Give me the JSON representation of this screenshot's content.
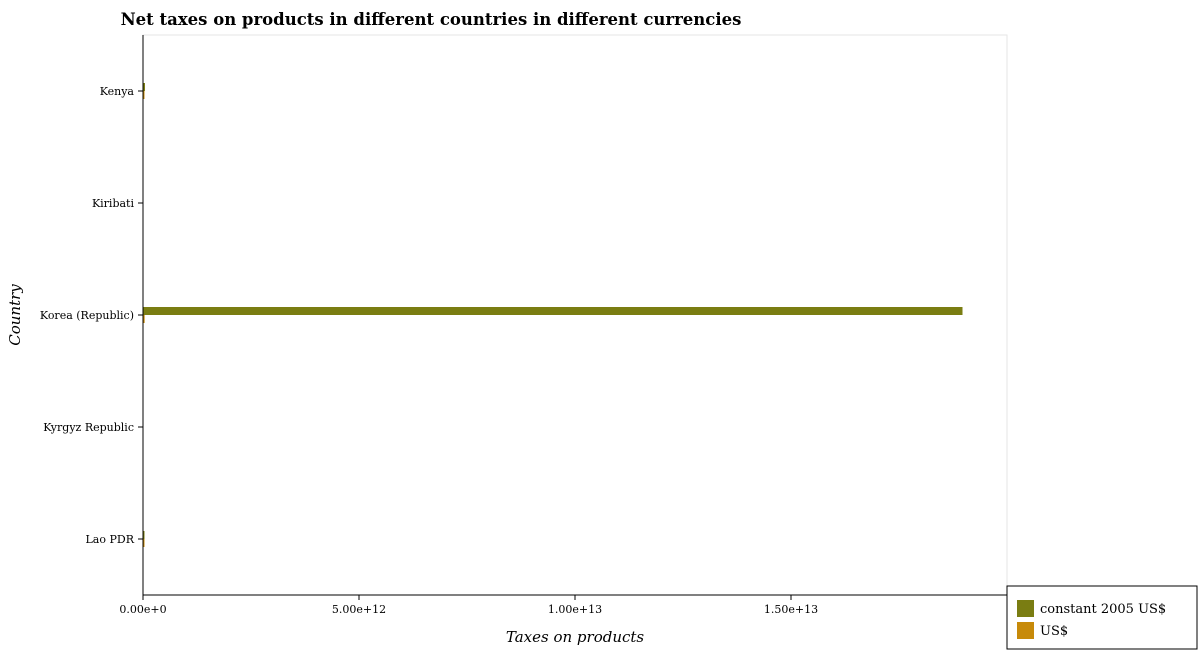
{
  "chart_data": {
    "type": "bar",
    "orientation": "horizontal",
    "title": "Net taxes on products in different countries in different currencies",
    "xlabel": "Taxes on products",
    "ylabel": "Country",
    "categories": [
      "Kenya",
      "Kiribati",
      "Korea (Republic)",
      "Kyrgyz Republic",
      "Lao PDR"
    ],
    "series": [
      {
        "name": "constant 2005 US$",
        "color": "#7a7d12",
        "values": [
          46000000000,
          0,
          18970000000000,
          0,
          15000000000
        ]
      },
      {
        "name": "US$",
        "color": "#c78a09",
        "values": [
          1000000000,
          0,
          38000000000,
          0,
          8000000000
        ]
      }
    ],
    "xlim": [
      0,
      20000000000000
    ],
    "xticks": [
      0,
      5000000000000,
      10000000000000,
      15000000000000
    ],
    "xtick_labels": [
      "0.00e+0",
      "5.00e+12",
      "1.00e+13",
      "1.50e+13"
    ],
    "grid": false,
    "legend_position": "bottom-right"
  }
}
